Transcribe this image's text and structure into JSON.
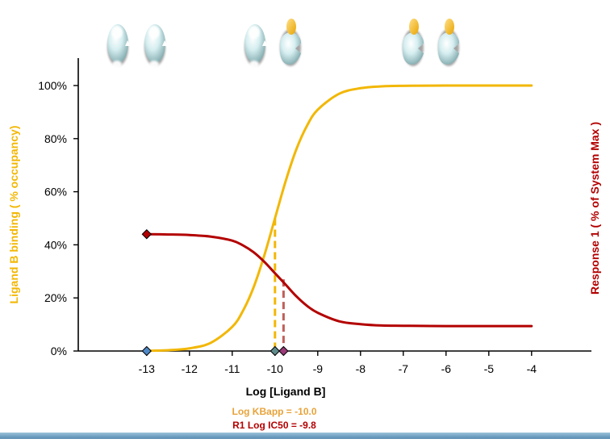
{
  "chart_data": {
    "type": "line",
    "xlabel": "Log [Ligand B]",
    "ylabel_left": "Ligand B binding ( % occupancy)",
    "ylabel_right": "Response 1 ( % of System Max )",
    "xlim": [
      -14.6,
      -2.6
    ],
    "ylim": [
      0,
      1.0
    ],
    "x_ticks": [
      -13,
      -12,
      -11,
      -10,
      -9,
      -8,
      -7,
      -6,
      -5,
      -4
    ],
    "y_ticks": [
      0,
      0.2,
      0.4,
      0.6,
      0.8,
      1.0
    ],
    "y_tick_labels": [
      "0%",
      "20%",
      "40%",
      "60%",
      "80%",
      "100%"
    ],
    "grid": false,
    "series": [
      {
        "key": "binding",
        "color": "#f2b705",
        "x": [
          -13,
          -12.5,
          -12,
          -11.5,
          -11,
          -10.75,
          -10.5,
          -10.25,
          -10,
          -9.75,
          -9.5,
          -9.25,
          -9,
          -8.5,
          -8,
          -7.5,
          -7,
          -6,
          -5,
          -4
        ],
        "y": [
          0.001,
          0.003,
          0.01,
          0.031,
          0.091,
          0.151,
          0.24,
          0.36,
          0.5,
          0.64,
          0.76,
          0.849,
          0.909,
          0.969,
          0.99,
          0.997,
          0.999,
          1.0,
          1.0,
          1.0
        ]
      },
      {
        "key": "response",
        "color": "#b30000",
        "x": [
          -13,
          -12.5,
          -12,
          -11.5,
          -11,
          -10.75,
          -10.5,
          -10.25,
          -10,
          -9.75,
          -9.5,
          -9.25,
          -9,
          -8.5,
          -8,
          -7.5,
          -7,
          -6,
          -5,
          -4
        ],
        "y": [
          0.44,
          0.439,
          0.437,
          0.431,
          0.416,
          0.398,
          0.372,
          0.336,
          0.293,
          0.25,
          0.206,
          0.17,
          0.144,
          0.112,
          0.101,
          0.096,
          0.095,
          0.094,
          0.094,
          0.094
        ]
      }
    ],
    "markers": [
      {
        "x": -13,
        "y": 0.44,
        "color": "#b30000"
      },
      {
        "x": -13,
        "y": 0,
        "color": "#4f88c6"
      },
      {
        "x": -10,
        "y": 0,
        "color": "#5f8a8b"
      },
      {
        "x": -9.8,
        "y": 0,
        "color": "#9b3a78"
      }
    ],
    "drop_lines": [
      {
        "x": -10,
        "y": 0.5,
        "color": "#f2b705"
      },
      {
        "x": -9.8,
        "y": 0.27,
        "color": "#c0605a"
      }
    ],
    "annotations": [
      {
        "text": "Log KBapp = -10.0",
        "color": "#e8a33a"
      },
      {
        "text": "R1 Log IC50 = -9.8",
        "color": "#b30000"
      }
    ]
  },
  "receptor_icons": [
    {
      "name": "receptor-free-pair",
      "ligands": [
        "none",
        "none"
      ]
    },
    {
      "name": "receptor-mixed-pair",
      "ligands": [
        "none",
        "ligand-b"
      ]
    },
    {
      "name": "receptor-bound-pair",
      "ligands": [
        "ligand-b",
        "ligand-b"
      ]
    }
  ]
}
